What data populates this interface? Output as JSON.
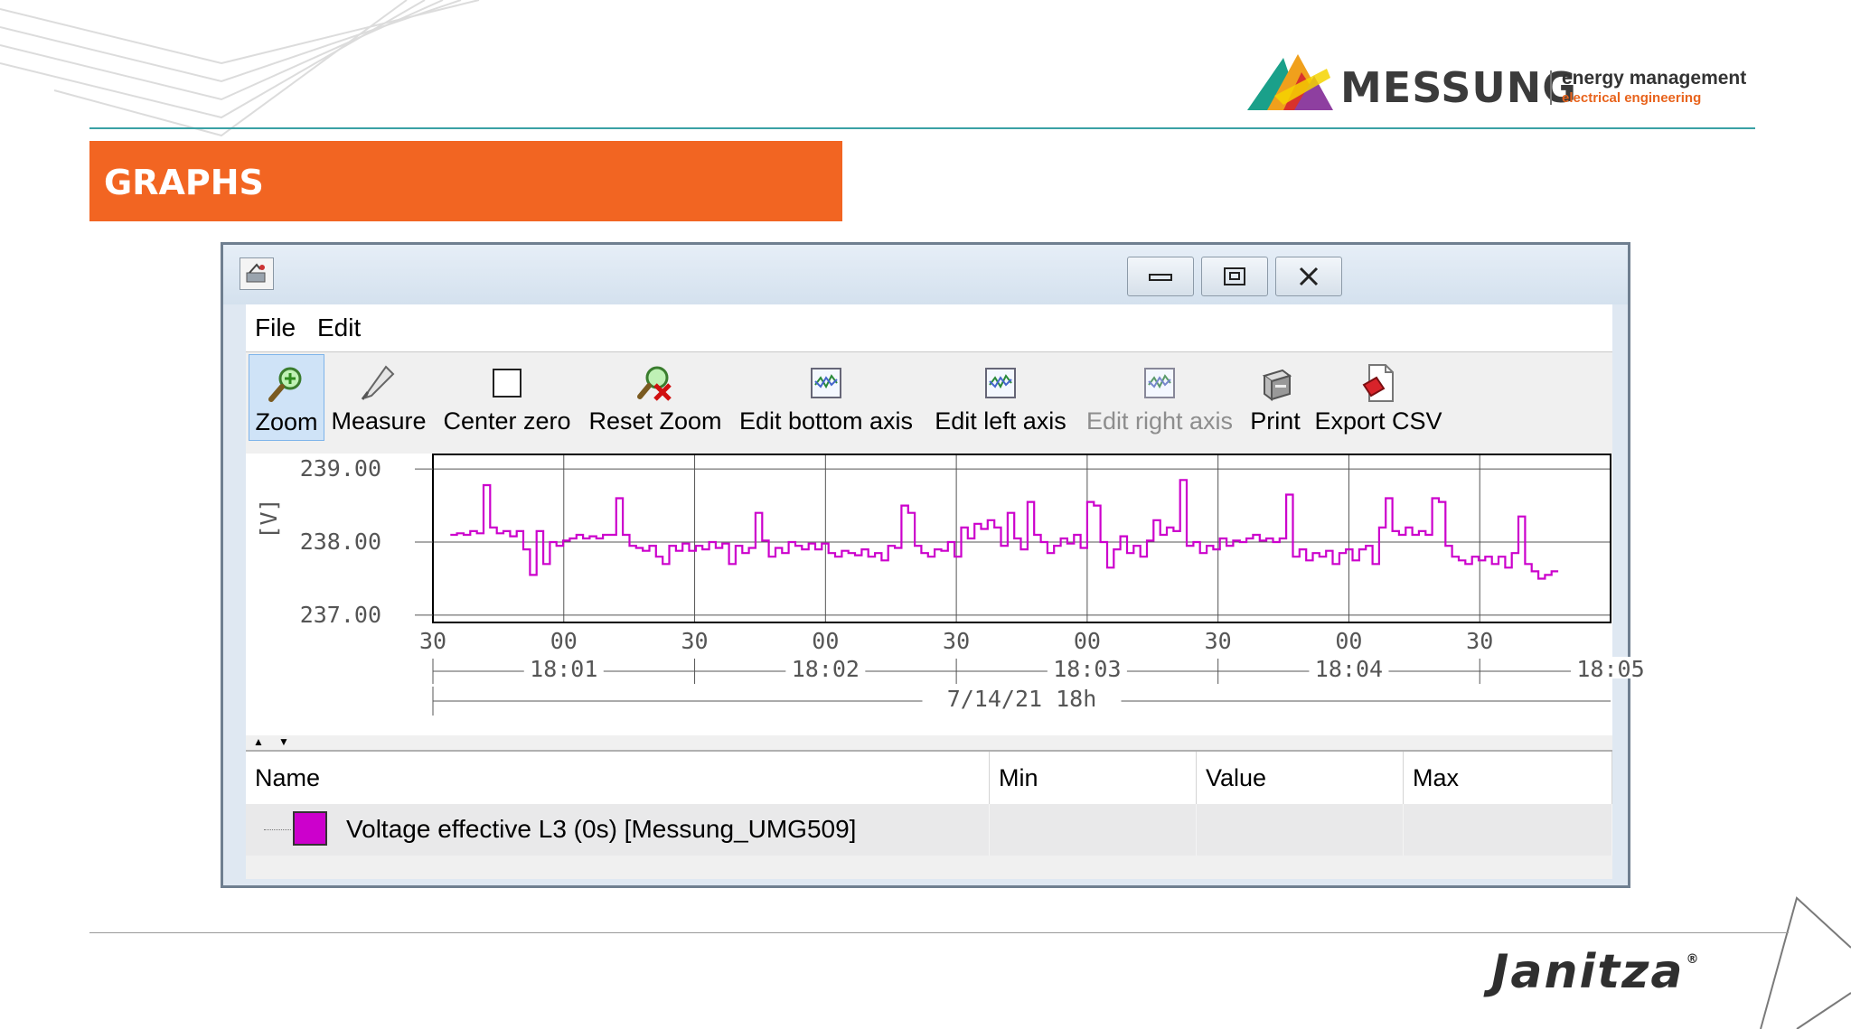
{
  "brand": {
    "company": "MESSUNG",
    "tagline_1": "energy management",
    "tagline_2": "electrical engineering",
    "footer_brand": "Janitza",
    "footer_mark": "®"
  },
  "section_title": "GRAPHS",
  "window": {
    "controls": {
      "minimize_icon": "minimize-icon",
      "maximize_icon": "maximize-icon",
      "close_icon": "close-icon"
    }
  },
  "menu": {
    "file": "File",
    "edit": "Edit"
  },
  "toolbar": {
    "zoom": "Zoom",
    "measure": "Measure",
    "center_zero": "Center zero",
    "reset_zoom": "Reset Zoom",
    "edit_bottom_axis": "Edit bottom axis",
    "edit_left_axis": "Edit left axis",
    "edit_right_axis": "Edit right axis",
    "print": "Print",
    "export_csv": "Export CSV"
  },
  "chart_data": {
    "type": "line",
    "ylabel": "[V]",
    "ylim": [
      236.9,
      239.2
    ],
    "y_ticks": [
      "239.00",
      "238.00",
      "237.00"
    ],
    "x_ticks": [
      "30",
      "00",
      "30",
      "00",
      "30",
      "00",
      "30",
      "00",
      "30"
    ],
    "x_minute_labels": [
      "18:01",
      "18:02",
      "18:03",
      "18:04",
      "18:05"
    ],
    "x_hour_label": "7/14/21 18h",
    "grid": true,
    "series": [
      {
        "color": "#cc00cc",
        "step": true,
        "x_range_s": [
          -26,
          228
        ],
        "values": [
          238.1,
          238.12,
          238.1,
          238.15,
          238.12,
          238.78,
          238.2,
          238.12,
          238.15,
          238.08,
          238.15,
          237.9,
          237.55,
          238.15,
          237.7,
          238.0,
          237.95,
          238.02,
          238.05,
          238.1,
          238.05,
          238.08,
          238.05,
          238.1,
          238.1,
          238.6,
          238.1,
          237.95,
          237.92,
          237.88,
          237.95,
          237.8,
          237.7,
          237.95,
          237.88,
          237.98,
          237.88,
          237.95,
          237.9,
          238.0,
          237.92,
          237.98,
          237.7,
          237.95,
          237.85,
          237.92,
          238.4,
          238.02,
          237.8,
          237.92,
          237.85,
          238.0,
          237.95,
          237.9,
          237.98,
          237.9,
          237.98,
          237.85,
          237.8,
          237.88,
          237.85,
          237.82,
          237.9,
          237.8,
          237.85,
          237.75,
          237.95,
          237.92,
          238.5,
          238.4,
          237.95,
          237.85,
          237.8,
          237.9,
          237.88,
          238.0,
          237.8,
          238.2,
          238.05,
          238.25,
          238.18,
          238.3,
          238.2,
          237.95,
          238.4,
          238.05,
          237.9,
          238.55,
          238.1,
          238.0,
          237.85,
          237.95,
          238.05,
          237.98,
          238.1,
          237.92,
          238.55,
          238.5,
          238.0,
          237.65,
          237.9,
          238.08,
          237.85,
          237.95,
          237.8,
          238.02,
          238.3,
          238.1,
          238.2,
          238.15,
          238.85,
          237.95,
          238.0,
          237.85,
          237.95,
          237.9,
          238.05,
          237.95,
          238.02,
          238.0,
          238.05,
          238.1,
          238.02,
          238.05,
          238.0,
          238.05,
          238.65,
          237.8,
          237.9,
          237.75,
          237.85,
          237.8,
          237.88,
          237.7,
          237.85,
          237.9,
          237.75,
          237.9,
          237.95,
          237.7,
          238.2,
          238.6,
          238.15,
          238.1,
          238.2,
          238.1,
          238.15,
          238.1,
          238.6,
          238.55,
          237.95,
          237.8,
          237.75,
          237.7,
          237.8,
          237.75,
          237.8,
          237.7,
          237.8,
          237.65,
          237.85,
          238.35,
          237.7,
          237.6,
          237.5,
          237.55,
          237.6
        ]
      }
    ]
  },
  "table": {
    "headers": {
      "name": "Name",
      "min": "Min",
      "value": "Value",
      "max": "Max"
    },
    "rows": [
      {
        "name": "Voltage effective L3 (0s) [Messung_UMG509]",
        "color": "#cc00cc",
        "min": "",
        "value": "",
        "max": ""
      }
    ]
  }
}
